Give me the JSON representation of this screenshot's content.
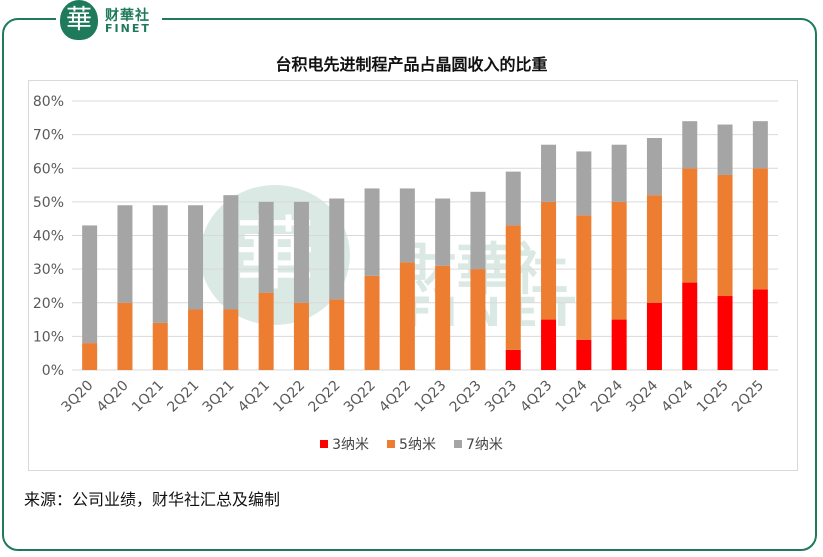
{
  "brand": {
    "seal_char": "華",
    "name_cn": "财華社",
    "name_en": "FINET"
  },
  "watermark": {
    "seal_char": "華",
    "name_cn": "財華社",
    "name_en": "FINET"
  },
  "chart_data": {
    "type": "bar",
    "stacked": true,
    "title": "台积电先进制程产品占晶圆收入的比重",
    "categories": [
      "3Q20",
      "4Q20",
      "1Q21",
      "2Q21",
      "3Q21",
      "4Q21",
      "1Q22",
      "2Q22",
      "3Q22",
      "4Q22",
      "1Q23",
      "2Q23",
      "3Q23",
      "4Q23",
      "1Q24",
      "2Q24",
      "3Q24",
      "4Q24",
      "1Q25",
      "2Q25"
    ],
    "series": [
      {
        "name": "3纳米",
        "color": "#ff0000",
        "values": [
          0,
          0,
          0,
          0,
          0,
          0,
          0,
          0,
          0,
          0,
          0,
          0,
          6,
          15,
          9,
          15,
          20,
          26,
          22,
          24
        ]
      },
      {
        "name": "5纳米",
        "color": "#ed7d31",
        "values": [
          8,
          20,
          14,
          18,
          18,
          23,
          20,
          21,
          28,
          32,
          31,
          30,
          37,
          35,
          37,
          35,
          32,
          34,
          36,
          36
        ]
      },
      {
        "name": "7纳米",
        "color": "#a5a5a5",
        "values": [
          35,
          29,
          35,
          31,
          34,
          27,
          30,
          30,
          26,
          22,
          20,
          23,
          16,
          17,
          19,
          17,
          17,
          14,
          15,
          14
        ]
      }
    ],
    "y_ticks": [
      "0%",
      "10%",
      "20%",
      "30%",
      "40%",
      "50%",
      "60%",
      "70%",
      "80%"
    ],
    "ylim": [
      0,
      80
    ],
    "grid": true,
    "legend_position": "bottom"
  },
  "source_note": "来源：公司业绩，财华社汇总及编制"
}
